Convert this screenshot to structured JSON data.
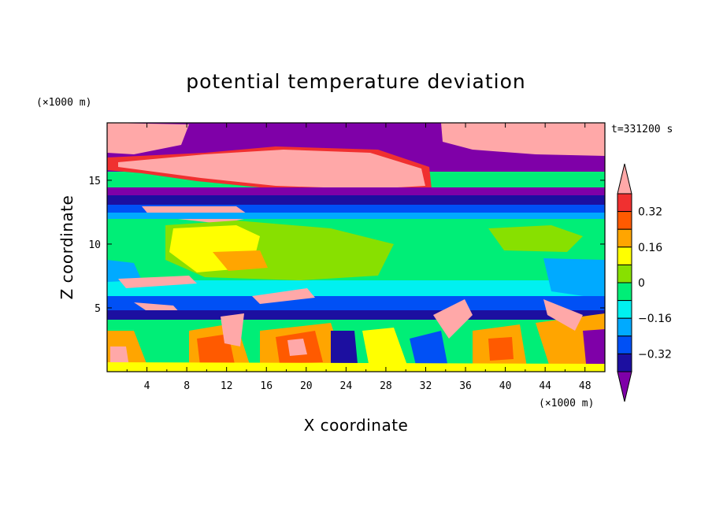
{
  "chart_data": {
    "type": "heatmap",
    "title": "potential temperature deviation",
    "xlabel": "X coordinate",
    "ylabel": "Z coordinate",
    "x_unit": "(×1000 m)",
    "y_unit": "(×1000 m)",
    "time_label": "t=331200 s",
    "xlim": [
      0,
      50
    ],
    "ylim": [
      0,
      19.5
    ],
    "x_ticks": [
      "4",
      "8",
      "12",
      "16",
      "20",
      "24",
      "28",
      "32",
      "36",
      "40",
      "44",
      "48"
    ],
    "y_ticks": [
      "5",
      "10",
      "15"
    ],
    "colorbar": {
      "levels": [
        -0.4,
        -0.32,
        -0.24,
        -0.16,
        -0.08,
        0,
        0.08,
        0.16,
        0.24,
        0.32,
        0.4
      ],
      "labels": [
        "0.32",
        "0.16",
        "0",
        "−0.16",
        "−0.32"
      ],
      "colors": [
        "#7f00a8",
        "#1c0fa0",
        "#0050f5",
        "#00aaff",
        "#00f0f0",
        "#00ee77",
        "#88e000",
        "#ffff00",
        "#ffa500",
        "#ff5a00",
        "#f03030",
        "#ffa8a8"
      ],
      "extend": "both"
    },
    "grid": false,
    "legend": "right"
  }
}
